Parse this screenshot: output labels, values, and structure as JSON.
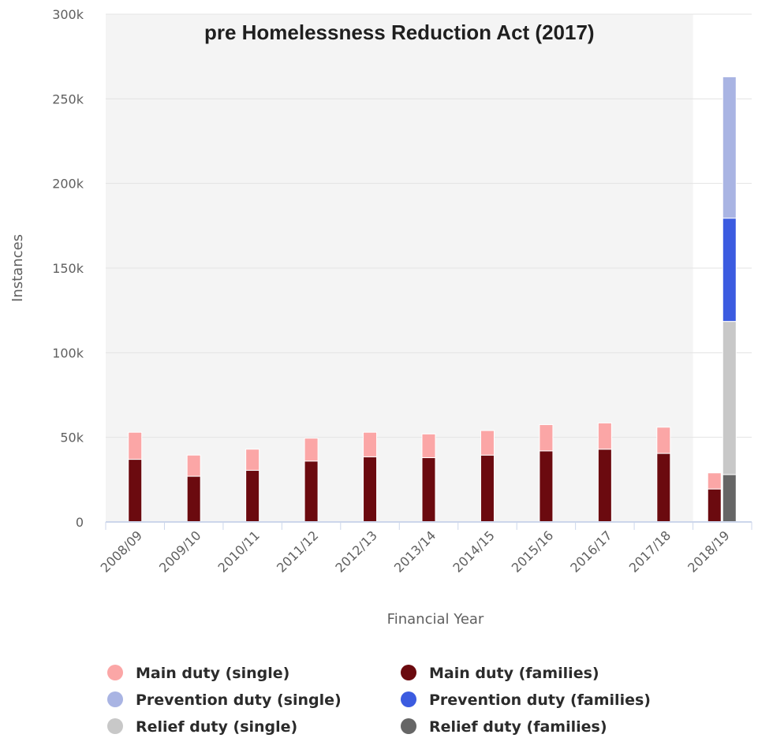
{
  "chart_data": {
    "type": "bar",
    "stacked": true,
    "plot_band_label": "pre Homelessness Reduction Act (2017)",
    "xlabel": "Financial Year",
    "ylabel": "Instances",
    "ylim": [
      0,
      300000
    ],
    "y_ticks": [
      "0",
      "50k",
      "100k",
      "150k",
      "200k",
      "250k",
      "300k"
    ],
    "y_tick_values": [
      0,
      50000,
      100000,
      150000,
      200000,
      250000,
      300000
    ],
    "grid": true,
    "legend_position": "bottom",
    "categories": [
      "2008/09",
      "2009/10",
      "2010/11",
      "2011/12",
      "2012/13",
      "2013/14",
      "2014/15",
      "2015/16",
      "2016/17",
      "2017/18",
      "2018/19"
    ],
    "stacks": [
      {
        "stack": "main",
        "series": [
          {
            "name": "Main duty (families)",
            "color": "#6b0a0f",
            "values": [
              37000,
              27000,
              30500,
              36000,
              38500,
              38000,
              39500,
              42000,
              43000,
              40500,
              19500
            ]
          },
          {
            "name": "Main duty (single)",
            "color": "#fba6a6",
            "values": [
              16000,
              12500,
              12500,
              13500,
              14500,
              14000,
              14500,
              15500,
              15500,
              15500,
              9500
            ]
          }
        ]
      },
      {
        "stack": "prevention-relief",
        "series": [
          {
            "name": "Relief duty (families)",
            "color": "#666666",
            "values": [
              null,
              null,
              null,
              null,
              null,
              null,
              null,
              null,
              null,
              null,
              28000
            ]
          },
          {
            "name": "Relief duty (single)",
            "color": "#c8c8c8",
            "values": [
              null,
              null,
              null,
              null,
              null,
              null,
              null,
              null,
              null,
              null,
              90500
            ]
          },
          {
            "name": "Prevention duty (families)",
            "color": "#3b5be0",
            "values": [
              null,
              null,
              null,
              null,
              null,
              null,
              null,
              null,
              null,
              null,
              61000
            ]
          },
          {
            "name": "Prevention duty (single)",
            "color": "#a9b4e3",
            "values": [
              null,
              null,
              null,
              null,
              null,
              null,
              null,
              null,
              null,
              null,
              83500
            ]
          }
        ]
      }
    ],
    "legend": [
      {
        "name": "Main duty (single)",
        "color": "#fba6a6"
      },
      {
        "name": "Main duty (families)",
        "color": "#6b0a0f"
      },
      {
        "name": "Prevention duty (single)",
        "color": "#a9b4e3"
      },
      {
        "name": "Prevention duty (families)",
        "color": "#3b5be0"
      },
      {
        "name": "Relief duty (single)",
        "color": "#c8c8c8"
      },
      {
        "name": "Relief duty (families)",
        "color": "#666666"
      }
    ]
  }
}
